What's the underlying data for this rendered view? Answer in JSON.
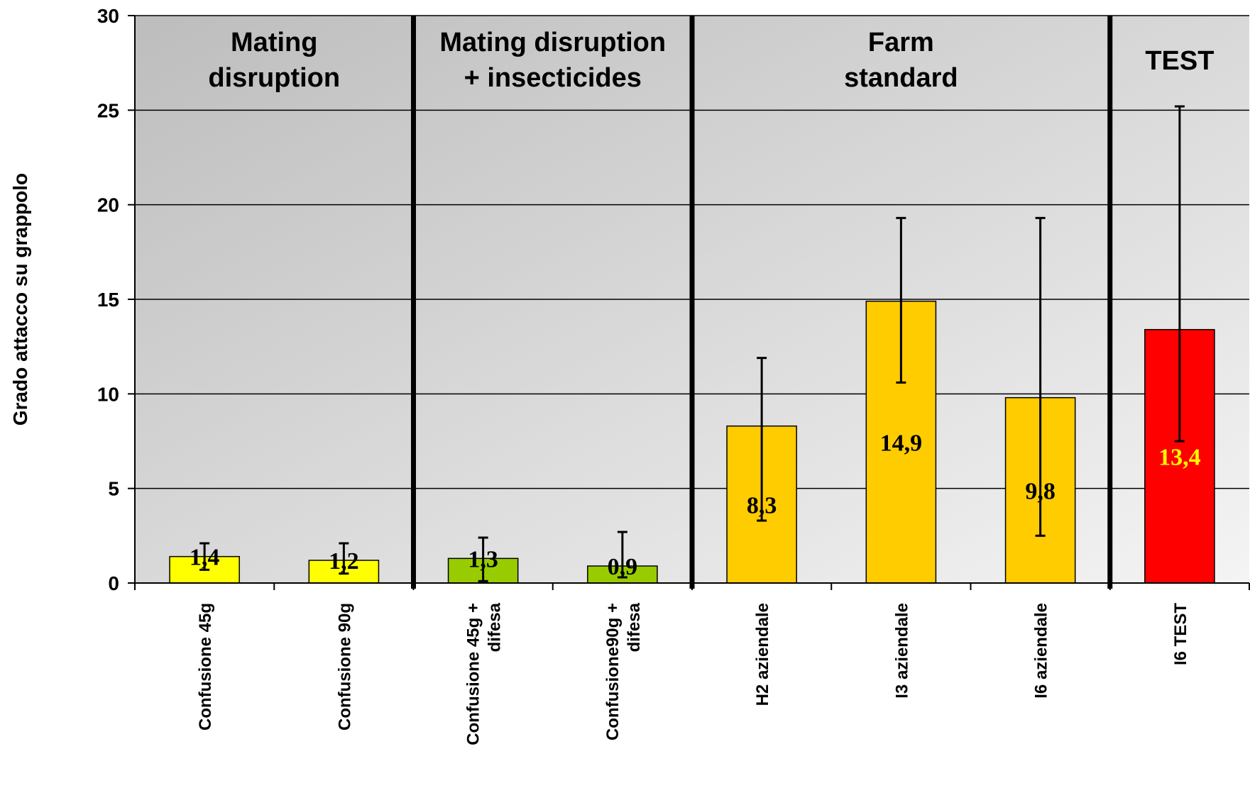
{
  "chart_data": {
    "type": "bar",
    "title": "",
    "xlabel": "",
    "ylabel": "Grado attacco su grappolo",
    "ylim": [
      0,
      30
    ],
    "yticks": [
      0,
      5,
      10,
      15,
      20,
      25,
      30
    ],
    "grid": true,
    "categories": [
      [
        "Confusione 45g"
      ],
      [
        "Confusione 90g"
      ],
      [
        "Confusione 45g +",
        "difesa"
      ],
      [
        "Confusione90g +",
        "difesa"
      ],
      [
        "H2 aziendale"
      ],
      [
        "I3 aziendale"
      ],
      [
        "I6 aziendale"
      ],
      [
        "I6 TEST"
      ]
    ],
    "values": [
      1.4,
      1.2,
      1.3,
      0.9,
      8.3,
      14.9,
      9.8,
      13.4
    ],
    "value_labels": [
      "1,4",
      "1,2",
      "1,3",
      "0,9",
      "8,3",
      "14,9",
      "9,8",
      "13,4"
    ],
    "error_low": [
      0.7,
      0.5,
      0.1,
      0.3,
      3.3,
      10.6,
      2.5,
      7.5
    ],
    "error_high": [
      2.1,
      2.1,
      2.4,
      2.7,
      11.9,
      19.3,
      19.3,
      25.2
    ],
    "bar_colors": [
      "#ffff00",
      "#ffff00",
      "#99cc00",
      "#99cc00",
      "#ffcc00",
      "#ffcc00",
      "#ffcc00",
      "#ff0000"
    ],
    "label_colors": [
      "#000000",
      "#000000",
      "#000000",
      "#000000",
      "#000000",
      "#000000",
      "#000000",
      "#ffff00"
    ],
    "groups": [
      {
        "lines": [
          "Mating",
          "disruption"
        ],
        "start": 0,
        "end": 2
      },
      {
        "lines": [
          "Mating disruption",
          "+ insecticides"
        ],
        "start": 2,
        "end": 4
      },
      {
        "lines": [
          "Farm",
          "standard"
        ],
        "start": 4,
        "end": 7
      },
      {
        "lines": [
          "TEST"
        ],
        "start": 7,
        "end": 8
      }
    ]
  }
}
